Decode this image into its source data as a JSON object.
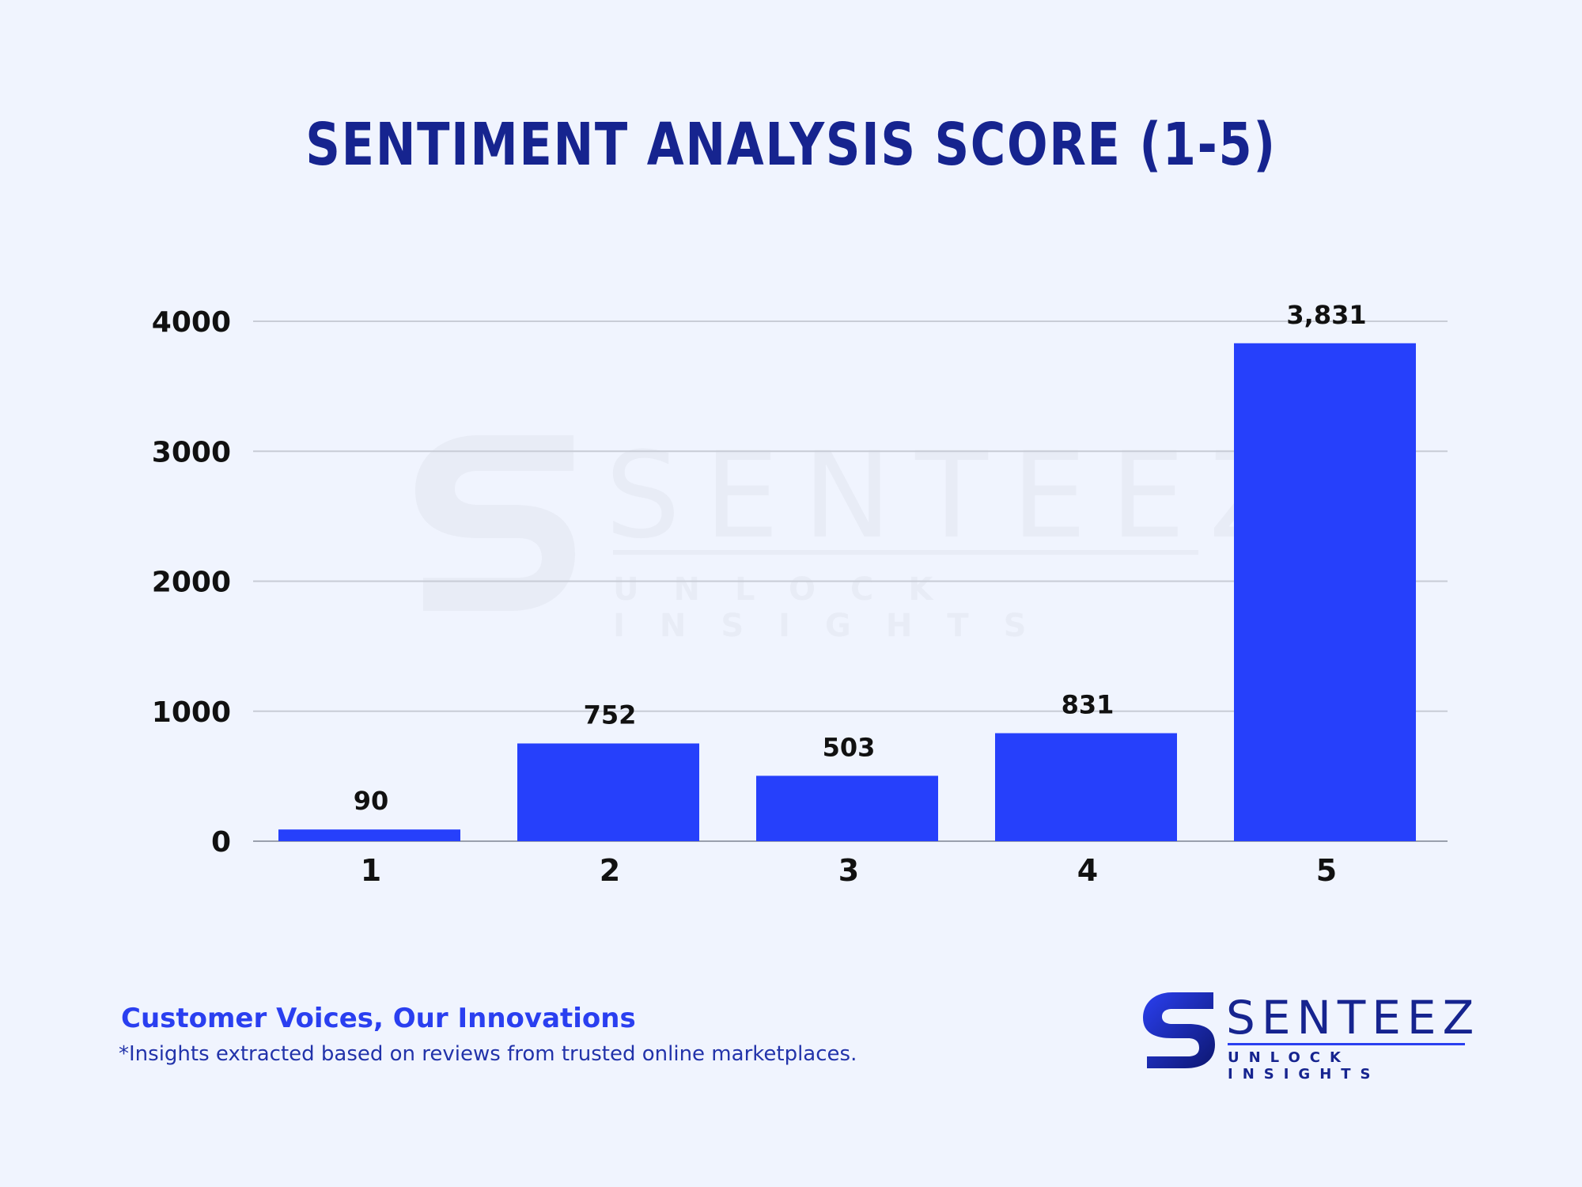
{
  "title": "SENTIMENT ANALYSIS SCORE (1-5)",
  "chart_data": {
    "type": "bar",
    "title": "SENTIMENT ANALYSIS SCORE (1-5)",
    "xlabel": "",
    "ylabel": "",
    "categories": [
      "1",
      "2",
      "3",
      "4",
      "5"
    ],
    "values": [
      90,
      752,
      503,
      831,
      3831
    ],
    "value_labels": [
      "90",
      "752",
      "503",
      "831",
      "3,831"
    ],
    "yticks": [
      0,
      1000,
      2000,
      3000,
      4000
    ],
    "ylim": [
      0,
      4000
    ],
    "grid": true,
    "legend": "none",
    "bar_color": "#2640fb"
  },
  "footer": {
    "heading": "Customer Voices, Our Innovations",
    "note": "*Insights extracted based on reviews from trusted online marketplaces."
  },
  "logo": {
    "wordmark": "SENTEEZ",
    "tagline": "UNLOCK INSIGHTS"
  },
  "watermark": {
    "wordmark": "SENTEEZ",
    "tagline": "UNLOCK INSIGHTS"
  },
  "colors": {
    "background": "#f0f4fe",
    "title": "#16248f",
    "accent": "#2a3ff0",
    "axis_text": "#111111",
    "grid": "#c8ccd6"
  }
}
